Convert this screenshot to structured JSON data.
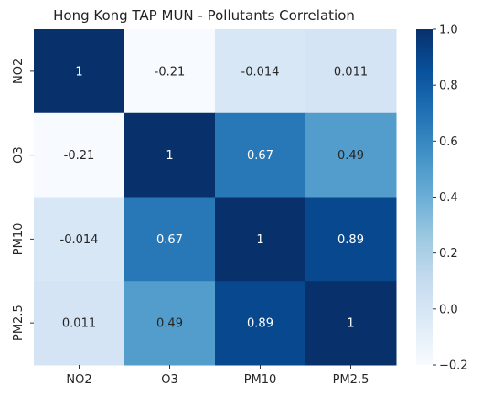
{
  "chart_data": {
    "type": "heatmap",
    "title": "Hong Kong TAP MUN - Pollutants Correlation",
    "xlabel": "",
    "ylabel": "",
    "x_categories": [
      "NO2",
      "O3",
      "PM10",
      "PM2.5"
    ],
    "y_categories": [
      "NO2",
      "O3",
      "PM10",
      "PM2.5"
    ],
    "values": [
      [
        1,
        -0.21,
        -0.014,
        0.011
      ],
      [
        -0.21,
        1,
        0.67,
        0.49
      ],
      [
        -0.014,
        0.67,
        1,
        0.89
      ],
      [
        0.011,
        0.49,
        0.89,
        1
      ]
    ],
    "value_labels": [
      [
        "1",
        "-0.21",
        "-0.014",
        "0.011"
      ],
      [
        "-0.21",
        "1",
        "0.67",
        "0.49"
      ],
      [
        "-0.014",
        "0.67",
        "1",
        "0.89"
      ],
      [
        "0.011",
        "0.49",
        "0.89",
        "1"
      ]
    ],
    "colormap": "Blues",
    "vmin": -0.2,
    "vmax": 1.0,
    "colorbar_ticks": [
      1.0,
      0.8,
      0.6,
      0.4,
      0.2,
      0.0,
      -0.2
    ],
    "colorbar_tick_labels": [
      "1.0",
      "0.8",
      "0.6",
      "0.4",
      "0.2",
      "0.0",
      "−0.2"
    ],
    "legend": "colorbar-right"
  }
}
